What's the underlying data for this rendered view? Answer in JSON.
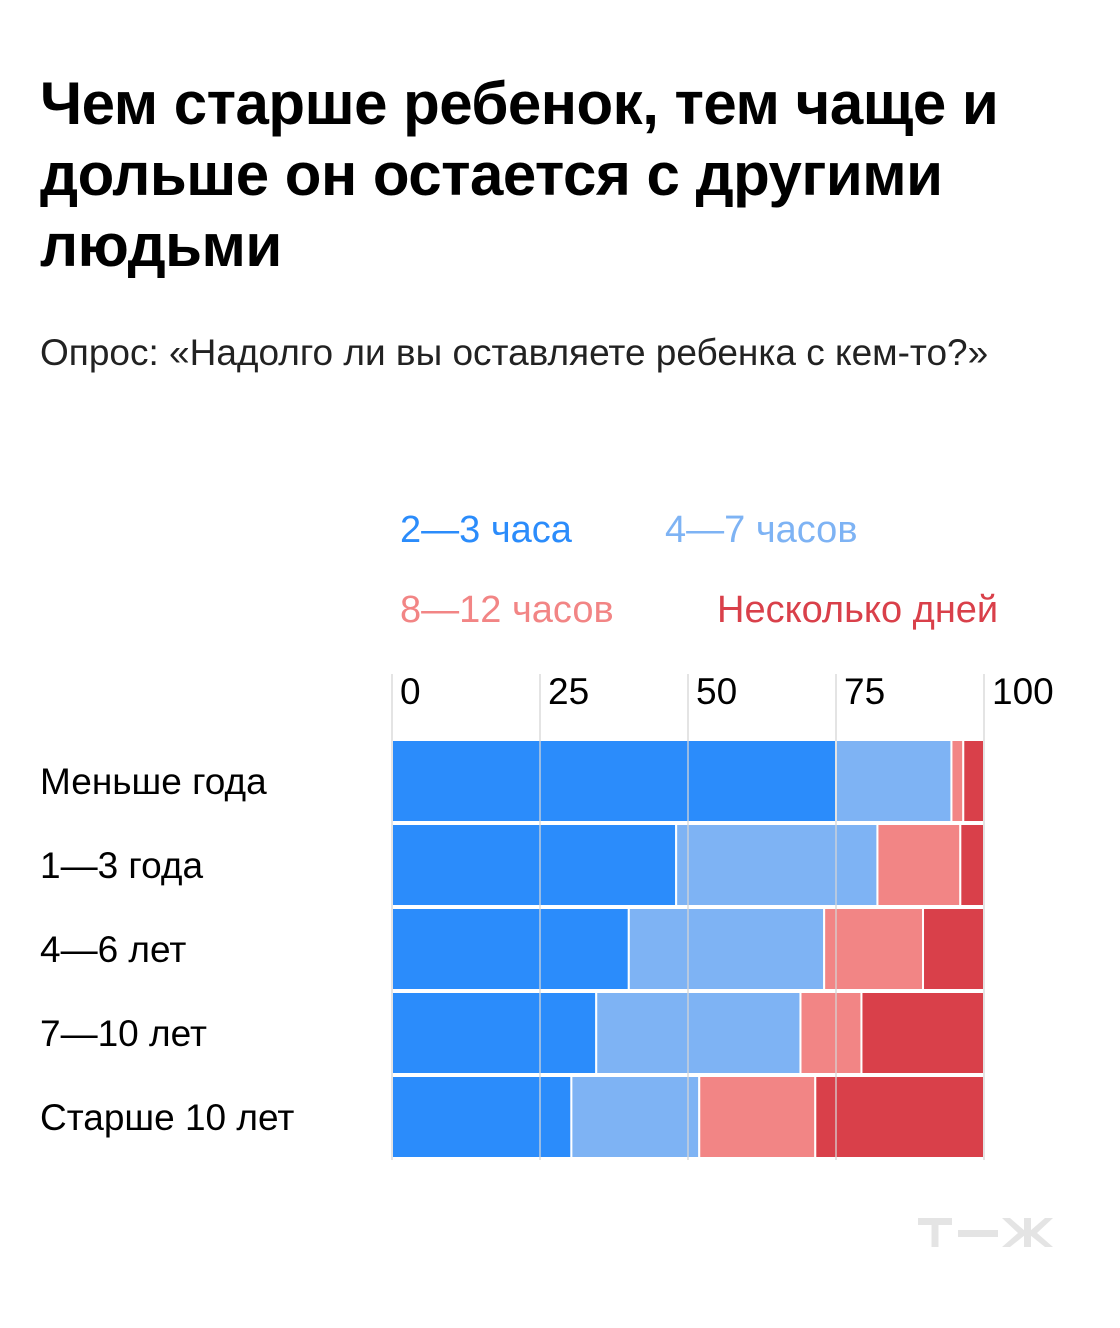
{
  "header": {
    "title": "Чем старше ребенок, тем чаще и дольше он остается с другими людьми",
    "subtitle": "Опрос: «Надолго ли вы оставляете ребенка с кем-то?»"
  },
  "chart_data": {
    "type": "bar",
    "orientation": "horizontal",
    "stacked": true,
    "categories": [
      "Меньше года",
      "1—3 года",
      "4—6 лет",
      "7—10 лет",
      "Старше 10 лет"
    ],
    "series": [
      {
        "name": "2—3 часа",
        "color": "#2b8cfb",
        "values": [
          75,
          48,
          40,
          34.5,
          30.3
        ]
      },
      {
        "name": "4—7 часов",
        "color": "#7eb3f4",
        "values": [
          19.5,
          34,
          33,
          34.5,
          21.6
        ]
      },
      {
        "name": "8—12 часов",
        "color": "#f28585",
        "values": [
          2,
          14,
          16.7,
          10.3,
          19.6
        ]
      },
      {
        "name": "Несколько дней",
        "color": "#d9404a",
        "values": [
          3.5,
          4,
          10.3,
          20.7,
          28.5
        ]
      }
    ],
    "xlim": [
      0,
      100
    ],
    "xticks": [
      "0",
      "25",
      "50",
      "75",
      "100"
    ],
    "legend_position": "top",
    "grid": true
  },
  "brand": {
    "logo": "Т—Ж"
  }
}
